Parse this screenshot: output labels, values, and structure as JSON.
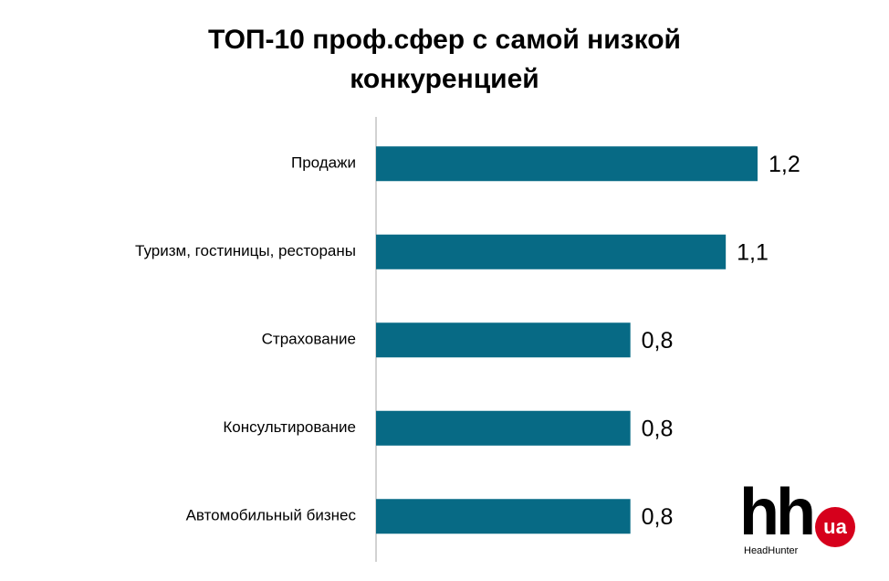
{
  "chart_data": {
    "type": "hbar",
    "title": "ТОП-10 проф.сфер с самой низкой конкуренцией",
    "categories": [
      "Продажи",
      "Туризм, гостиницы, рестораны",
      "Страхование",
      "Консультирование",
      "Автомобильный бизнес"
    ],
    "values": [
      1.2,
      1.1,
      0.8,
      0.8,
      0.8
    ],
    "value_labels": [
      "1,2",
      "1,1",
      "0,8",
      "0,8",
      "0,8"
    ],
    "color": "#076a85"
  },
  "logo": {
    "mark": "hh",
    "badge": "ua",
    "name": "HeadHunter"
  }
}
